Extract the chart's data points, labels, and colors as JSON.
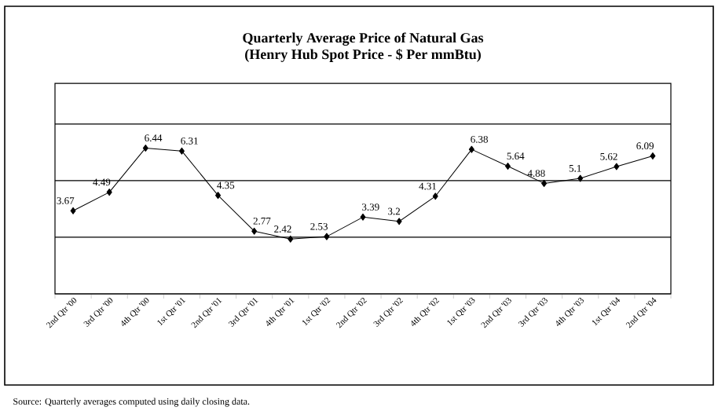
{
  "chart_data": {
    "type": "line",
    "title": "Quarterly Average Price of Natural Gas",
    "subtitle": "(Henry Hub Spot Price - $ Per mmBtu)",
    "categories": [
      "2nd Qtr '00",
      "3rd Qtr '00",
      "4th Qtr '00",
      "1st Qtr '01",
      "2nd Qtr '01",
      "3rd Qtr '01",
      "4th Qtr '01",
      "1st Qtr '02",
      "2nd Qtr '02",
      "3rd Qtr '02",
      "4th Qtr '02",
      "1st Qtr '03",
      "2nd Qtr '03",
      "3rd Qtr '03",
      "4th Qtr '03",
      "1st Qtr '04",
      "2nd Qtr '04"
    ],
    "series": [
      {
        "color": "#000000",
        "values": [
          3.67,
          4.49,
          6.44,
          6.31,
          4.35,
          2.77,
          2.42,
          2.53,
          3.39,
          3.2,
          4.31,
          6.38,
          5.64,
          4.88,
          5.1,
          5.62,
          6.09
        ]
      }
    ],
    "data_labels": true,
    "ylim": [
      0,
      9.3
    ],
    "yticks": [
      {
        "value": 0,
        "label": null
      },
      {
        "value": 2.5,
        "label": null
      },
      {
        "value": 5,
        "label": null
      },
      {
        "value": 7.5,
        "label": null
      }
    ],
    "grid": "y",
    "tick_labels": "x",
    "marker": "diamond",
    "line_style": "solid",
    "annotations": [
      "Source:  Quarterly averages computed using daily closing data."
    ]
  }
}
